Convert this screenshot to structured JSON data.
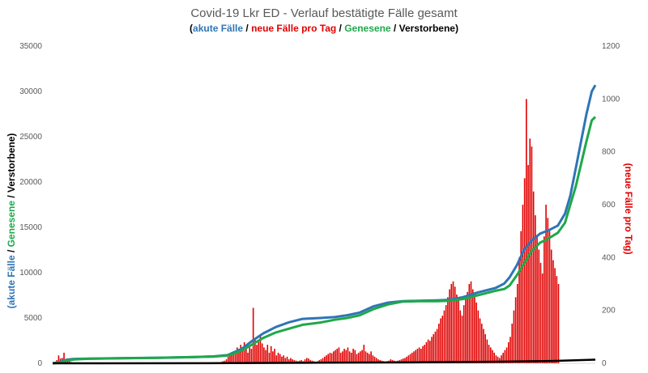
{
  "chart_data": {
    "type": "line",
    "title": "Covid-19 Lkr ED - Verlauf bestätigte Fälle gesamt",
    "subtitle_parts": [
      {
        "text": "(",
        "color": "#000000"
      },
      {
        "text": "akute Fälle",
        "color": "#2E75B6"
      },
      {
        "text": " / ",
        "color": "#000000"
      },
      {
        "text": "neue Fälle pro Tag",
        "color": "#E00000"
      },
      {
        "text": " / ",
        "color": "#000000"
      },
      {
        "text": "Genesene",
        "color": "#1FA84A"
      },
      {
        "text": " / Verstorbene)",
        "color": "#000000"
      }
    ],
    "ylabel_left_parts": [
      {
        "text": "(akute Fälle",
        "color": "#2E75B6"
      },
      {
        "text": " / ",
        "color": "#000000"
      },
      {
        "text": "Genesene",
        "color": "#1FA84A"
      },
      {
        "text": " / Verstorbene)",
        "color": "#000000"
      }
    ],
    "ylabel_right": "(neue Fälle pro Tag)",
    "ylim_left": [
      0,
      35000
    ],
    "yticks_left": [
      "0",
      "5000",
      "10000",
      "15000",
      "20000",
      "25000",
      "30000",
      "35000"
    ],
    "ylim_right": [
      0,
      1200
    ],
    "yticks_right": [
      "0",
      "200",
      "400",
      "600",
      "800",
      "1000",
      "1200"
    ],
    "grid": false,
    "x_range": [
      0,
      300
    ],
    "series": [
      {
        "name": "akute Fälle",
        "color": "#2E75B6",
        "axis": "left",
        "points": [
          [
            0,
            0
          ],
          [
            4,
            150
          ],
          [
            8,
            400
          ],
          [
            12,
            480
          ],
          [
            20,
            520
          ],
          [
            40,
            570
          ],
          [
            60,
            620
          ],
          [
            80,
            700
          ],
          [
            90,
            760
          ],
          [
            98,
            900
          ],
          [
            106,
            1600
          ],
          [
            112,
            2500
          ],
          [
            118,
            3300
          ],
          [
            125,
            4000
          ],
          [
            132,
            4500
          ],
          [
            140,
            4900
          ],
          [
            150,
            5000
          ],
          [
            158,
            5100
          ],
          [
            165,
            5300
          ],
          [
            172,
            5600
          ],
          [
            180,
            6300
          ],
          [
            188,
            6700
          ],
          [
            196,
            6850
          ],
          [
            205,
            6900
          ],
          [
            215,
            6950
          ],
          [
            222,
            7000
          ],
          [
            230,
            7300
          ],
          [
            238,
            7800
          ],
          [
            248,
            8300
          ],
          [
            253,
            8800
          ],
          [
            256,
            9500
          ],
          [
            260,
            10800
          ],
          [
            264,
            12500
          ],
          [
            268,
            13500
          ],
          [
            273,
            14300
          ],
          [
            278,
            14700
          ],
          [
            283,
            15200
          ],
          [
            287,
            16500
          ],
          [
            290,
            18500
          ],
          [
            293,
            21500
          ],
          [
            296,
            24500
          ],
          [
            299,
            27500
          ],
          [
            302,
            30000
          ],
          [
            304,
            30700
          ]
        ]
      },
      {
        "name": "Genesene",
        "color": "#1FA84A",
        "axis": "left",
        "points": [
          [
            0,
            0
          ],
          [
            4,
            60
          ],
          [
            8,
            300
          ],
          [
            12,
            420
          ],
          [
            20,
            500
          ],
          [
            40,
            560
          ],
          [
            60,
            610
          ],
          [
            80,
            690
          ],
          [
            90,
            740
          ],
          [
            98,
            860
          ],
          [
            106,
            1400
          ],
          [
            112,
            2100
          ],
          [
            118,
            2800
          ],
          [
            125,
            3400
          ],
          [
            132,
            3800
          ],
          [
            140,
            4250
          ],
          [
            150,
            4500
          ],
          [
            158,
            4800
          ],
          [
            165,
            5000
          ],
          [
            172,
            5300
          ],
          [
            180,
            6000
          ],
          [
            188,
            6500
          ],
          [
            196,
            6800
          ],
          [
            205,
            6850
          ],
          [
            215,
            6850
          ],
          [
            222,
            6900
          ],
          [
            230,
            7100
          ],
          [
            238,
            7500
          ],
          [
            248,
            8000
          ],
          [
            253,
            8200
          ],
          [
            256,
            8600
          ],
          [
            260,
            9700
          ],
          [
            264,
            11000
          ],
          [
            268,
            12300
          ],
          [
            273,
            13300
          ],
          [
            278,
            13800
          ],
          [
            283,
            14400
          ],
          [
            287,
            15500
          ],
          [
            290,
            17500
          ],
          [
            293,
            19500
          ],
          [
            296,
            22000
          ],
          [
            299,
            24500
          ],
          [
            302,
            26800
          ],
          [
            304,
            27200
          ]
        ]
      },
      {
        "name": "Verstorbene",
        "color": "#000000",
        "axis": "left",
        "points": [
          [
            0,
            0
          ],
          [
            100,
            20
          ],
          [
            150,
            60
          ],
          [
            200,
            100
          ],
          [
            250,
            180
          ],
          [
            280,
            260
          ],
          [
            304,
            400
          ]
        ]
      },
      {
        "name": "neue Fälle pro Tag",
        "color": "#E00000",
        "axis": "right",
        "type": "bar",
        "values": [
          0,
          5,
          12,
          30,
          18,
          20,
          40,
          15,
          10,
          8,
          5,
          3,
          2,
          2,
          2,
          1,
          1,
          1,
          1,
          0,
          0,
          0,
          0,
          0,
          0,
          0,
          0,
          0,
          0,
          0,
          0,
          0,
          0,
          0,
          0,
          0,
          0,
          0,
          0,
          0,
          0,
          0,
          0,
          0,
          0,
          0,
          0,
          0,
          0,
          0,
          0,
          0,
          0,
          0,
          0,
          0,
          0,
          0,
          0,
          0,
          0,
          0,
          0,
          0,
          0,
          0,
          0,
          0,
          0,
          0,
          0,
          0,
          0,
          0,
          0,
          0,
          0,
          0,
          0,
          0,
          0,
          0,
          0,
          0,
          0,
          0,
          0,
          0,
          0,
          0,
          0,
          0,
          0,
          0,
          5,
          8,
          10,
          15,
          25,
          30,
          35,
          45,
          40,
          60,
          55,
          70,
          50,
          80,
          65,
          40,
          60,
          55,
          210,
          95,
          70,
          80,
          110,
          75,
          60,
          50,
          70,
          40,
          65,
          45,
          55,
          30,
          40,
          35,
          25,
          30,
          20,
          25,
          15,
          20,
          15,
          12,
          10,
          8,
          10,
          12,
          8,
          15,
          20,
          18,
          12,
          10,
          8,
          6,
          8,
          12,
          15,
          20,
          25,
          30,
          35,
          40,
          38,
          45,
          50,
          55,
          60,
          40,
          45,
          55,
          50,
          60,
          45,
          40,
          55,
          50,
          35,
          40,
          45,
          50,
          70,
          45,
          40,
          35,
          45,
          30,
          25,
          20,
          15,
          12,
          10,
          8,
          6,
          8,
          10,
          15,
          12,
          10,
          8,
          10,
          12,
          15,
          18,
          20,
          25,
          30,
          35,
          40,
          45,
          50,
          55,
          60,
          55,
          65,
          70,
          80,
          90,
          85,
          100,
          110,
          120,
          130,
          150,
          170,
          180,
          200,
          220,
          250,
          280,
          300,
          310,
          290,
          260,
          240,
          200,
          180,
          220,
          250,
          270,
          300,
          310,
          280,
          260,
          230,
          200,
          170,
          150,
          130,
          110,
          90,
          70,
          60,
          50,
          40,
          30,
          25,
          20,
          30,
          40,
          50,
          60,
          80,
          100,
          150,
          200,
          250,
          300,
          400,
          500,
          600,
          700,
          1000,
          750,
          850,
          820,
          650,
          560,
          480,
          430,
          380,
          340,
          480,
          600,
          550,
          500,
          430,
          390,
          360,
          330,
          300
        ]
      }
    ]
  }
}
